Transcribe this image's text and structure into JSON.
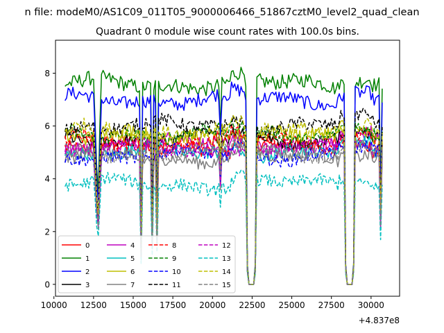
{
  "figure_title": "n file: modeM0/AS1C09_011T05_9000006466_51867cztM0_level2_quad_clean",
  "chart_data": {
    "type": "line",
    "title": "Quadrant 0 module wise count rates with 100.0s bins.",
    "xlabel": "",
    "ylabel": "",
    "x_offset_label": "+4.837e8",
    "xlim": [
      10100,
      31800
    ],
    "ylim": [
      -0.45,
      9.25
    ],
    "xticks": [
      10000,
      12500,
      15000,
      17500,
      20000,
      22500,
      25000,
      27500,
      30000
    ],
    "xtick_labels": [
      "10000",
      "12500",
      "15000",
      "17500",
      "20000",
      "22500",
      "25000",
      "27500",
      "30000"
    ],
    "yticks": [
      0,
      2,
      4,
      6,
      8
    ],
    "ytick_labels": [
      "0",
      "2",
      "4",
      "6",
      "8"
    ],
    "grid": false,
    "legend_placement": "lower-left",
    "legend_columns": 4,
    "x_range": [
      10700,
      30700
    ],
    "x_step": 100,
    "series": [
      {
        "name": "0",
        "color": "#ff0000",
        "dash": "solid",
        "mean": 5.2,
        "noise": 0.28
      },
      {
        "name": "1",
        "color": "#008000",
        "dash": "solid",
        "mean": 7.6,
        "noise": 0.28
      },
      {
        "name": "2",
        "color": "#0000ff",
        "dash": "solid",
        "mean": 7.0,
        "noise": 0.26
      },
      {
        "name": "3",
        "color": "#000000",
        "dash": "solid",
        "mean": 5.5,
        "noise": 0.25
      },
      {
        "name": "4",
        "color": "#bf00bf",
        "dash": "solid",
        "mean": 5.3,
        "noise": 0.28
      },
      {
        "name": "5",
        "color": "#00bfbf",
        "dash": "solid",
        "mean": 5.0,
        "noise": 0.26
      },
      {
        "name": "6",
        "color": "#bfbf00",
        "dash": "solid",
        "mean": 5.6,
        "noise": 0.28
      },
      {
        "name": "7",
        "color": "#808080",
        "dash": "solid",
        "mean": 4.8,
        "noise": 0.25
      },
      {
        "name": "8",
        "color": "#ff0000",
        "dash": "dashed",
        "mean": 5.4,
        "noise": 0.27
      },
      {
        "name": "9",
        "color": "#008000",
        "dash": "dashed",
        "mean": 5.7,
        "noise": 0.27
      },
      {
        "name": "10",
        "color": "#0000ff",
        "dash": "dashed",
        "mean": 4.9,
        "noise": 0.24
      },
      {
        "name": "11",
        "color": "#000000",
        "dash": "dashed",
        "mean": 6.0,
        "noise": 0.26
      },
      {
        "name": "12",
        "color": "#bf00bf",
        "dash": "dashed",
        "mean": 5.1,
        "noise": 0.27
      },
      {
        "name": "13",
        "color": "#00bfbf",
        "dash": "dashed",
        "mean": 3.8,
        "noise": 0.24
      },
      {
        "name": "14",
        "color": "#bfbf00",
        "dash": "dashed",
        "mean": 5.8,
        "noise": 0.28
      },
      {
        "name": "15",
        "color": "#808080",
        "dash": "dashed",
        "mean": 5.0,
        "noise": 0.25
      }
    ],
    "dips": [
      {
        "x": 12600,
        "factor": 0.8
      },
      {
        "x": 12700,
        "factor": 0.55
      },
      {
        "x": 12800,
        "factor": 0.45
      },
      {
        "x": 12900,
        "factor": 0.75
      },
      {
        "x": 15500,
        "factor": 0.22
      },
      {
        "x": 16200,
        "factor": 0.3
      },
      {
        "x": 16500,
        "factor": 0.32
      },
      {
        "x": 20500,
        "factor": 0.78
      },
      {
        "x": 22200,
        "factor": 0.1
      },
      {
        "x": 22300,
        "factor": 0
      },
      {
        "x": 22400,
        "factor": 0
      },
      {
        "x": 22500,
        "factor": 0
      },
      {
        "x": 22600,
        "factor": 0
      },
      {
        "x": 22700,
        "factor": 0.1
      },
      {
        "x": 28400,
        "factor": 0.1
      },
      {
        "x": 28500,
        "factor": 0
      },
      {
        "x": 28600,
        "factor": 0
      },
      {
        "x": 28700,
        "factor": 0
      },
      {
        "x": 28800,
        "factor": 0
      },
      {
        "x": 28900,
        "factor": 0.1
      },
      {
        "x": 30600,
        "factor": 0.45
      }
    ]
  }
}
